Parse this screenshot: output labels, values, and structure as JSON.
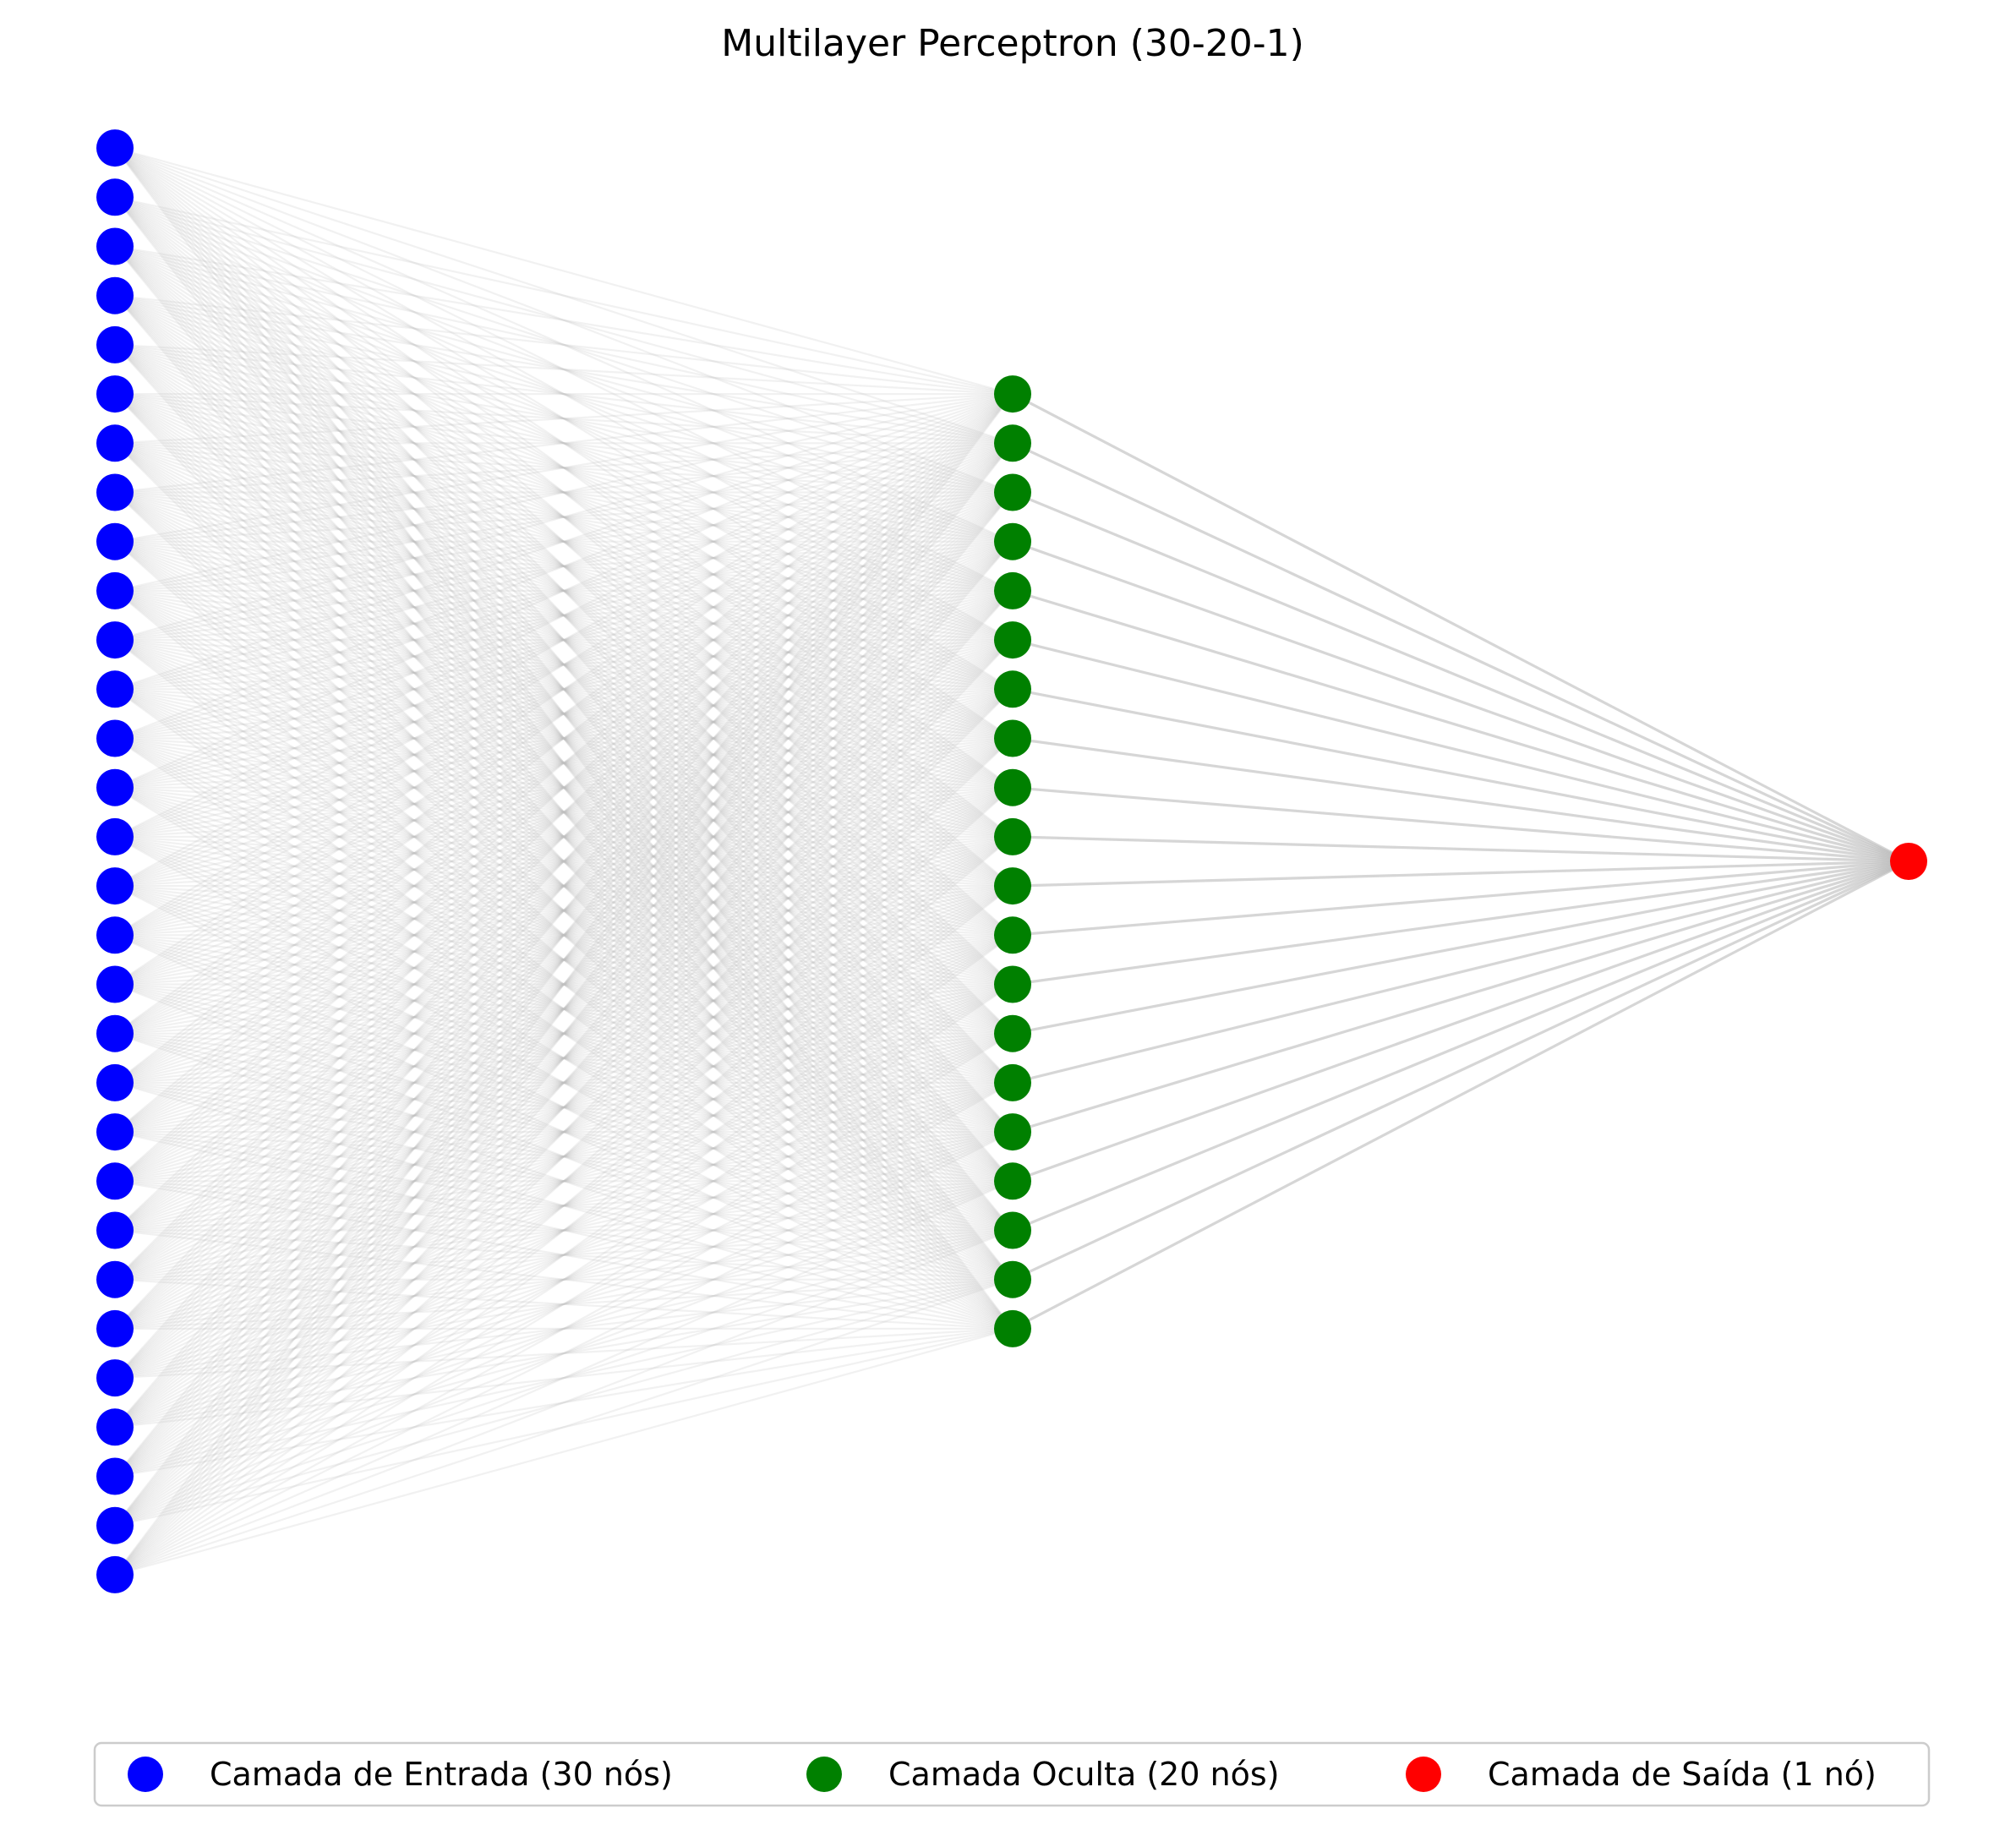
{
  "diagram": {
    "title": "Multilayer Perceptron (30-20-1)",
    "layers": [
      {
        "id": "input",
        "nodes": 30,
        "color": "#0000ff",
        "legend": "Camada de Entrada (30 nós)"
      },
      {
        "id": "hidden",
        "nodes": 20,
        "color": "#008000",
        "legend": "Camada Oculta (20 nós)"
      },
      {
        "id": "output",
        "nodes": 1,
        "color": "#ff0000",
        "legend": "Camada de Saída (1 nó)"
      }
    ],
    "connections": [
      {
        "from": "input",
        "to": "hidden",
        "color": "#bdbdbd"
      },
      {
        "from": "hidden",
        "to": "output",
        "color": "#bdbdbd"
      }
    ]
  }
}
